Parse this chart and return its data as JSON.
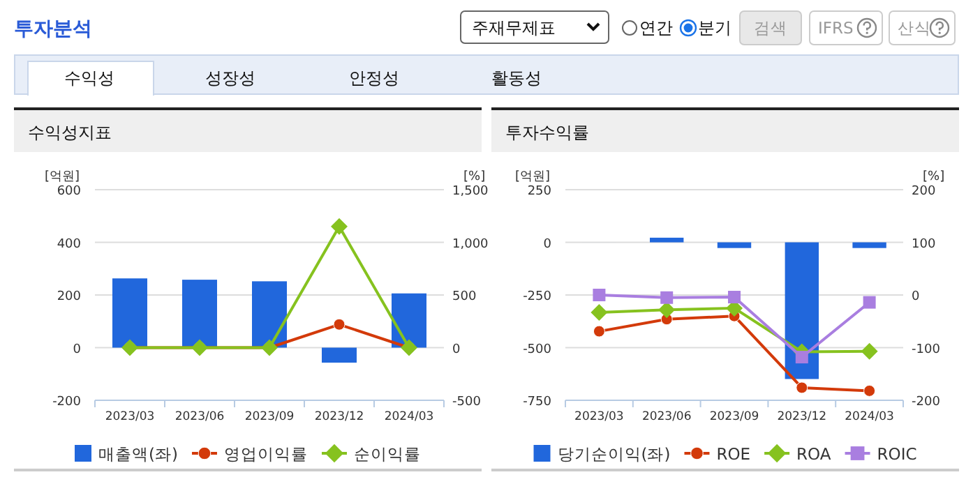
{
  "chart_data": [
    {
      "type": "other",
      "title": "투자분석",
      "annotations": [
        "주재무제표",
        "연간",
        "분기",
        "검색",
        "IFRS",
        "산식",
        "수익성",
        "성장성",
        "안정성",
        "활동성"
      ]
    },
    {
      "type": "bar",
      "title": "수익성지표",
      "categories": [
        "2023/03",
        "2023/06",
        "2023/09",
        "2023/12",
        "2024/03"
      ],
      "ylabel": "[억원]",
      "y2label": "[%]",
      "ylim": [
        -200,
        600
      ],
      "yticks": [
        -200,
        0,
        200,
        400,
        600
      ],
      "y2lim": [
        -500,
        1500
      ],
      "y2ticks": [
        {
          "value": -500,
          "label": "-500"
        },
        {
          "value": 0,
          "label": "0"
        },
        {
          "value": 500,
          "label": "500"
        },
        {
          "value": 1000,
          "label": "1,000"
        },
        {
          "value": 1500,
          "label": "1,500"
        }
      ],
      "grid": "y",
      "legend": "bottom",
      "series": [
        {
          "name": "매출액(좌)",
          "type": "bar",
          "color": "#2167dc",
          "values": [
            263,
            258,
            252,
            -57,
            206
          ]
        },
        {
          "name": "영업이익률",
          "type": "line",
          "axis": "y2",
          "color": "#d33a0a",
          "marker": "circle",
          "values": [
            0,
            0,
            0,
            220,
            0
          ]
        },
        {
          "name": "순이익률",
          "type": "line",
          "axis": "y2",
          "color": "#86c21f",
          "marker": "diamond",
          "values": [
            0,
            0,
            0,
            1150,
            0
          ]
        }
      ]
    },
    {
      "type": "bar",
      "title": "투자수익률",
      "categories": [
        "2023/03",
        "2023/06",
        "2023/09",
        "2023/12",
        "2024/03"
      ],
      "ylabel": "[억원]",
      "y2label": "[%]",
      "ylim": [
        -750,
        250
      ],
      "yticks": [
        -750,
        -500,
        -250,
        0,
        250
      ],
      "y2lim": [
        -200,
        200
      ],
      "y2ticks": [
        -200,
        -100,
        0,
        100,
        200
      ],
      "grid": "y",
      "legend": "bottom",
      "series": [
        {
          "name": "당기순이익(좌)",
          "type": "bar",
          "color": "#2167dc",
          "values": [
            0,
            22,
            -27,
            -649,
            -27
          ]
        },
        {
          "name": "ROE",
          "type": "line",
          "axis": "y2",
          "color": "#d33a0a",
          "marker": "circle",
          "values": [
            -69,
            -46,
            -40,
            -176,
            -182
          ]
        },
        {
          "name": "ROA",
          "type": "line",
          "axis": "y2",
          "color": "#86c21f",
          "marker": "diamond",
          "values": [
            -33,
            -28,
            -25,
            -108,
            -107
          ]
        },
        {
          "name": "ROIC",
          "type": "line",
          "axis": "y2",
          "color": "#a97ee0",
          "marker": "square",
          "values": [
            0,
            -5,
            -4,
            -118,
            -14
          ]
        }
      ]
    }
  ]
}
